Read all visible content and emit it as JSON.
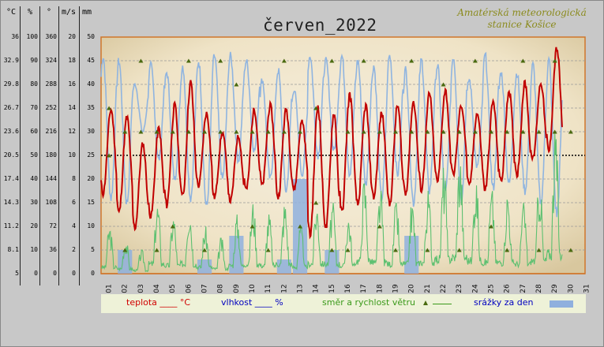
{
  "chart_data": {
    "type": "line",
    "title": "červen_2022",
    "station": [
      "Amatérská meteorologická",
      "stanice Košice"
    ],
    "axis_headers": [
      "°C",
      "%",
      "°",
      "m/s",
      "mm"
    ],
    "axes": {
      "temperature_c": {
        "ticks": [
          "36",
          "32.9",
          "29.8",
          "26.7",
          "23.6",
          "20.5",
          "17.4",
          "14.3",
          "11.2",
          "8.1",
          "5"
        ],
        "range": [
          5,
          36
        ]
      },
      "humidity_pct": {
        "ticks": [
          "100",
          "90",
          "80",
          "70",
          "60",
          "50",
          "40",
          "30",
          "20",
          "10",
          "0"
        ],
        "range": [
          0,
          100
        ]
      },
      "wind_dir_deg": {
        "ticks": [
          "360",
          "324",
          "288",
          "252",
          "216",
          "180",
          "144",
          "108",
          "72",
          "36",
          "0"
        ],
        "range": [
          0,
          360
        ]
      },
      "wind_speed_ms": {
        "ticks": [
          "20",
          "18",
          "16",
          "14",
          "12",
          "10",
          "8",
          "6",
          "4",
          "2",
          "0"
        ],
        "range": [
          0,
          20
        ]
      },
      "precip_mm": {
        "ticks": [
          "50",
          "45",
          "40",
          "35",
          "30",
          "25",
          "20",
          "15",
          "10",
          "5",
          "0"
        ],
        "range": [
          0,
          50
        ]
      }
    },
    "x_ticks": [
      "01",
      "02",
      "03",
      "04",
      "05",
      "06",
      "07",
      "08",
      "09",
      "10",
      "11",
      "12",
      "13",
      "14",
      "15",
      "16",
      "17",
      "18",
      "19",
      "20",
      "21",
      "22",
      "23",
      "24",
      "25",
      "26",
      "27",
      "28",
      "29",
      "30",
      "31"
    ],
    "days": [
      1,
      2,
      3,
      4,
      5,
      6,
      7,
      8,
      9,
      10,
      11,
      12,
      13,
      14,
      15,
      16,
      17,
      18,
      19,
      20,
      21,
      22,
      23,
      24,
      25,
      26,
      27,
      28,
      29,
      30
    ],
    "series": [
      {
        "key": "temperature",
        "unit": "°C",
        "color": "#c00000",
        "daily_max": [
          26.5,
          25.5,
          22,
          24,
          27,
          30,
          26,
          23.5,
          23,
          26.5,
          27,
          26.5,
          25,
          27,
          26,
          28.5,
          27,
          26,
          27,
          27.5,
          28.5,
          29,
          27,
          26,
          27.5,
          29,
          30,
          30,
          34.5,
          null
        ],
        "daily_min": [
          15.5,
          13,
          11,
          12.5,
          14,
          15,
          16.5,
          15,
          14.5,
          16,
          16.5,
          15,
          16,
          10,
          11,
          13,
          14,
          15,
          14,
          15.5,
          16,
          17,
          18,
          16.5,
          16,
          17,
          18,
          20,
          21,
          null
        ]
      },
      {
        "key": "humidity",
        "unit": "%",
        "color": "#8fb4e0",
        "daily_max": [
          92,
          90,
          80,
          88,
          85,
          88,
          90,
          92,
          92,
          90,
          82,
          86,
          78,
          92,
          90,
          92,
          90,
          88,
          92,
          86,
          90,
          88,
          92,
          82,
          92,
          85,
          85,
          88,
          90,
          null
        ],
        "daily_min": [
          32,
          30,
          60,
          48,
          40,
          32,
          28,
          40,
          48,
          52,
          40,
          35,
          42,
          50,
          52,
          42,
          38,
          32,
          42,
          30,
          35,
          34,
          32,
          45,
          36,
          38,
          35,
          30,
          25,
          null
        ]
      },
      {
        "key": "wind",
        "unit": "m/s",
        "color": "#5cc070",
        "daily_max": [
          4,
          3,
          2,
          6,
          5,
          6,
          4,
          3,
          5,
          6,
          5,
          6,
          4,
          6,
          6,
          5,
          8,
          7,
          6,
          6,
          7,
          9,
          10,
          8,
          7,
          7,
          6,
          8,
          12,
          null
        ]
      },
      {
        "key": "precipitation",
        "unit": "mm",
        "values": [
          0,
          5,
          0,
          0,
          0,
          0,
          3,
          0,
          8,
          0,
          0,
          3,
          20,
          0,
          5,
          0,
          0,
          0,
          0,
          8,
          0,
          0,
          0,
          0,
          0,
          0,
          0,
          0,
          0,
          0
        ]
      }
    ],
    "wind_dir_points": [
      [
        1,
        180
      ],
      [
        1,
        252
      ],
      [
        2,
        216
      ],
      [
        2,
        36
      ],
      [
        3,
        216
      ],
      [
        3,
        324
      ],
      [
        4,
        216
      ],
      [
        4,
        36
      ],
      [
        5,
        216
      ],
      [
        5,
        72
      ],
      [
        6,
        216
      ],
      [
        6,
        324
      ],
      [
        7,
        216
      ],
      [
        7,
        36
      ],
      [
        8,
        216
      ],
      [
        8,
        324
      ],
      [
        9,
        216
      ],
      [
        9,
        288
      ],
      [
        10,
        216
      ],
      [
        10,
        72
      ],
      [
        11,
        216
      ],
      [
        11,
        36
      ],
      [
        12,
        216
      ],
      [
        12,
        324
      ],
      [
        13,
        216
      ],
      [
        13,
        72
      ],
      [
        14,
        108
      ],
      [
        14,
        252
      ],
      [
        15,
        36
      ],
      [
        15,
        324
      ],
      [
        16,
        216
      ],
      [
        16,
        36
      ],
      [
        17,
        216
      ],
      [
        17,
        324
      ],
      [
        18,
        216
      ],
      [
        18,
        72
      ],
      [
        19,
        216
      ],
      [
        19,
        36
      ],
      [
        20,
        216
      ],
      [
        20,
        324
      ],
      [
        21,
        216
      ],
      [
        21,
        36
      ],
      [
        22,
        216
      ],
      [
        22,
        288
      ],
      [
        23,
        216
      ],
      [
        23,
        36
      ],
      [
        24,
        216
      ],
      [
        24,
        324
      ],
      [
        25,
        216
      ],
      [
        25,
        72
      ],
      [
        26,
        216
      ],
      [
        26,
        36
      ],
      [
        27,
        216
      ],
      [
        27,
        324
      ],
      [
        28,
        216
      ],
      [
        28,
        36
      ],
      [
        29,
        216
      ],
      [
        29,
        324
      ],
      [
        30,
        36
      ],
      [
        30,
        216
      ]
    ],
    "legend": [
      {
        "label": "teplota ____ °C"
      },
      {
        "label": "vlhkost ____ %"
      },
      {
        "label": "směr a rychlost větru"
      },
      {
        "label": "srážky za den"
      }
    ],
    "colors": {
      "bg_center": "#f6efdf",
      "bg_edge": "#d8c79e",
      "plot_border": "#d0762a",
      "grid": "#999999",
      "ref_line": "#000000",
      "wind_dir": "#4a6a10",
      "rain": "#8fb0de"
    }
  }
}
